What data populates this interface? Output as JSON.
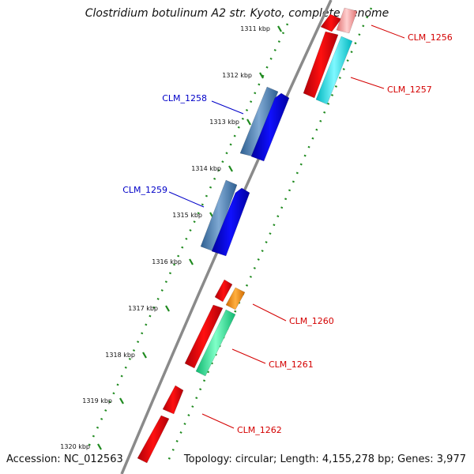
{
  "title": "Clostridium botulinum A2 str. Kyoto, complete genome",
  "footer": {
    "accession": "Accession: NC_012563",
    "summary": "Topology: circular; Length: 4,155,278 bp; Genes: 3,977"
  },
  "colors": {
    "backbone": "#888888",
    "tick_marks": "#1f8a1f",
    "cds_forward": "#e8000b",
    "label_forward": "#d40000",
    "label_reverse": "#0000c8"
  },
  "tick_labels": [
    "1311 kbp",
    "1312 kbp",
    "1313 kbp",
    "1314 kbp",
    "1315 kbp",
    "1316 kbp",
    "1317 kbp",
    "1318 kbp",
    "1319 kbp",
    "1320 kbp"
  ],
  "genes": [
    {
      "id": "CLM_1256",
      "strand": "forward",
      "feature_color": "#f29a9a"
    },
    {
      "id": "CLM_1257",
      "strand": "forward",
      "feature_color": "#00e5ee"
    },
    {
      "id": "CLM_1258",
      "strand": "reverse",
      "feature_color": "#4a7fb5"
    },
    {
      "id": "CLM_1259",
      "strand": "reverse",
      "feature_color": "#4a7fb5"
    },
    {
      "id": "CLM_1260",
      "strand": "forward",
      "feature_color": "#ff8c00"
    },
    {
      "id": "CLM_1261",
      "strand": "forward",
      "feature_color": "#2ee8a0"
    },
    {
      "id": "CLM_1262",
      "strand": "forward",
      "feature_color": "#e8000b"
    }
  ]
}
